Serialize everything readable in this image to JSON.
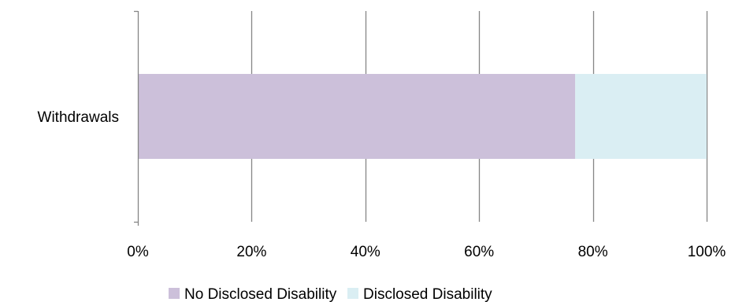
{
  "chart_data": {
    "type": "bar",
    "orientation": "horizontal",
    "stacked": "percent",
    "categories": [
      "Withdrawals"
    ],
    "series": [
      {
        "name": "No Disclosed Disability",
        "values": [
          76.9
        ],
        "color": "#CCC0DA"
      },
      {
        "name": "Disclosed Disability",
        "values": [
          23.1
        ],
        "color": "#DAEEF3"
      }
    ],
    "xlim": [
      0,
      100
    ],
    "x_ticks": [
      0,
      20,
      40,
      60,
      80,
      100
    ],
    "x_tick_labels": [
      "0%",
      "20%",
      "40%",
      "60%",
      "80%",
      "100%"
    ],
    "grid": "vertical",
    "grid_color": "#868686",
    "legend_position": "bottom"
  }
}
